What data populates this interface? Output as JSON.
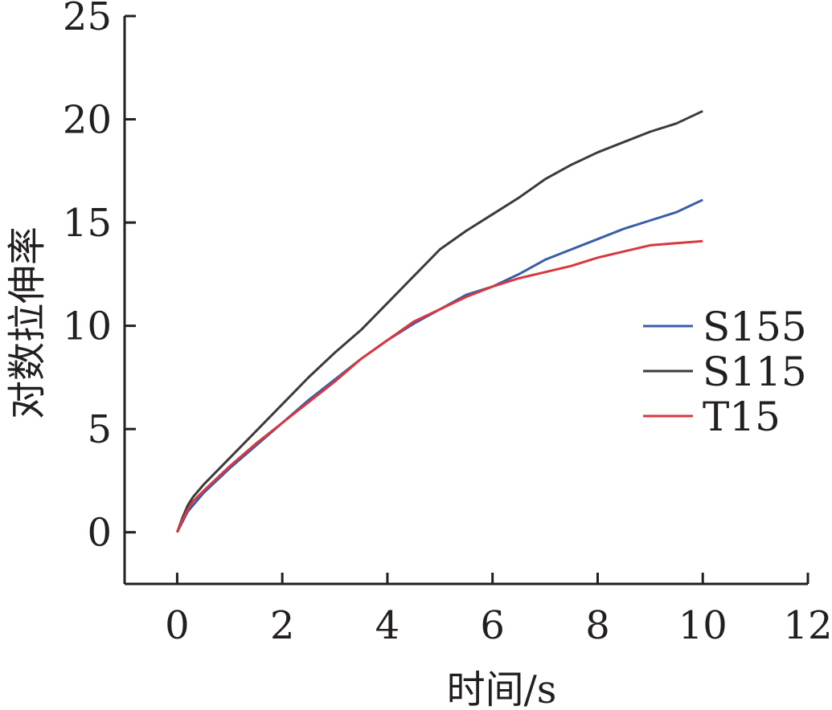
{
  "chart_data": {
    "type": "line",
    "xlabel": "时间/s",
    "ylabel": "对数拉伸率",
    "xlim": [
      -1,
      12
    ],
    "ylim": [
      -2.5,
      25
    ],
    "xticks": [
      0,
      2,
      4,
      6,
      8,
      10,
      12
    ],
    "yticks": [
      0,
      5,
      10,
      15,
      20,
      25
    ],
    "xtick_labels": [
      "0",
      "2",
      "4",
      "6",
      "8",
      "10",
      "12"
    ],
    "ytick_labels": [
      "0",
      "5",
      "10",
      "15",
      "20",
      "25"
    ],
    "grid": false,
    "legend_position": "right",
    "series": [
      {
        "name": "S155",
        "color": "#3a5da8",
        "x": [
          0,
          0.1,
          0.2,
          0.3,
          0.5,
          1,
          1.5,
          2,
          2.5,
          3,
          3.5,
          4,
          4.5,
          5,
          5.5,
          6,
          6.5,
          7,
          7.5,
          8,
          8.5,
          9,
          9.5,
          10
        ],
        "y": [
          0,
          0.5,
          1.0,
          1.3,
          1.9,
          3.1,
          4.2,
          5.3,
          6.4,
          7.4,
          8.4,
          9.3,
          10.1,
          10.8,
          11.5,
          11.9,
          12.5,
          13.2,
          13.7,
          14.2,
          14.7,
          15.1,
          15.5,
          16.1
        ]
      },
      {
        "name": "S115",
        "color": "#3d3a3b",
        "x": [
          0,
          0.1,
          0.2,
          0.3,
          0.5,
          1,
          1.5,
          2,
          2.5,
          3,
          3.5,
          4,
          4.5,
          5,
          5.5,
          6,
          6.5,
          7,
          7.5,
          8,
          8.5,
          9,
          9.5,
          10
        ],
        "y": [
          0,
          0.7,
          1.3,
          1.7,
          2.3,
          3.6,
          4.9,
          6.2,
          7.5,
          8.7,
          9.8,
          11.1,
          12.4,
          13.7,
          14.6,
          15.4,
          16.2,
          17.1,
          17.8,
          18.4,
          18.9,
          19.4,
          19.8,
          20.4
        ]
      },
      {
        "name": "T15",
        "color": "#d8383f",
        "x": [
          0,
          0.1,
          0.2,
          0.3,
          0.5,
          1,
          1.5,
          2,
          2.5,
          3,
          3.5,
          4,
          4.5,
          5,
          5.5,
          6,
          6.5,
          7,
          7.5,
          8,
          8.5,
          9,
          9.5,
          10
        ],
        "y": [
          0,
          0.6,
          1.1,
          1.5,
          2.0,
          3.2,
          4.3,
          5.3,
          6.3,
          7.3,
          8.4,
          9.3,
          10.2,
          10.8,
          11.4,
          11.9,
          12.3,
          12.6,
          12.9,
          13.3,
          13.6,
          13.9,
          14.0,
          14.1
        ]
      }
    ]
  }
}
